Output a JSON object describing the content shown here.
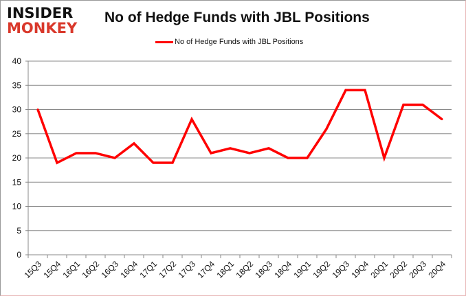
{
  "logo": {
    "line1": "INSIDER",
    "line2": "MONKEY"
  },
  "chart_data": {
    "type": "line",
    "title": "No of Hedge Funds with JBL Positions",
    "xlabel": "",
    "ylabel": "",
    "categories": [
      "15Q3",
      "15Q4",
      "16Q1",
      "16Q2",
      "16Q3",
      "16Q4",
      "17Q1",
      "17Q2",
      "17Q3",
      "17Q4",
      "18Q1",
      "18Q2",
      "18Q3",
      "18Q4",
      "19Q1",
      "19Q2",
      "19Q3",
      "19Q4",
      "20Q1",
      "20Q2",
      "20Q3",
      "20Q4"
    ],
    "series": [
      {
        "name": "No of Hedge Funds with JBL Positions",
        "values": [
          30,
          19,
          21,
          21,
          20,
          23,
          19,
          19,
          28,
          21,
          22,
          21,
          22,
          20,
          20,
          26,
          34,
          34,
          20,
          31,
          31,
          28
        ],
        "color": "#ff0000"
      }
    ],
    "ylim": [
      0,
      40
    ],
    "yticks": [
      0,
      5,
      10,
      15,
      20,
      25,
      30,
      35,
      40
    ],
    "grid": true,
    "legend": "top"
  }
}
